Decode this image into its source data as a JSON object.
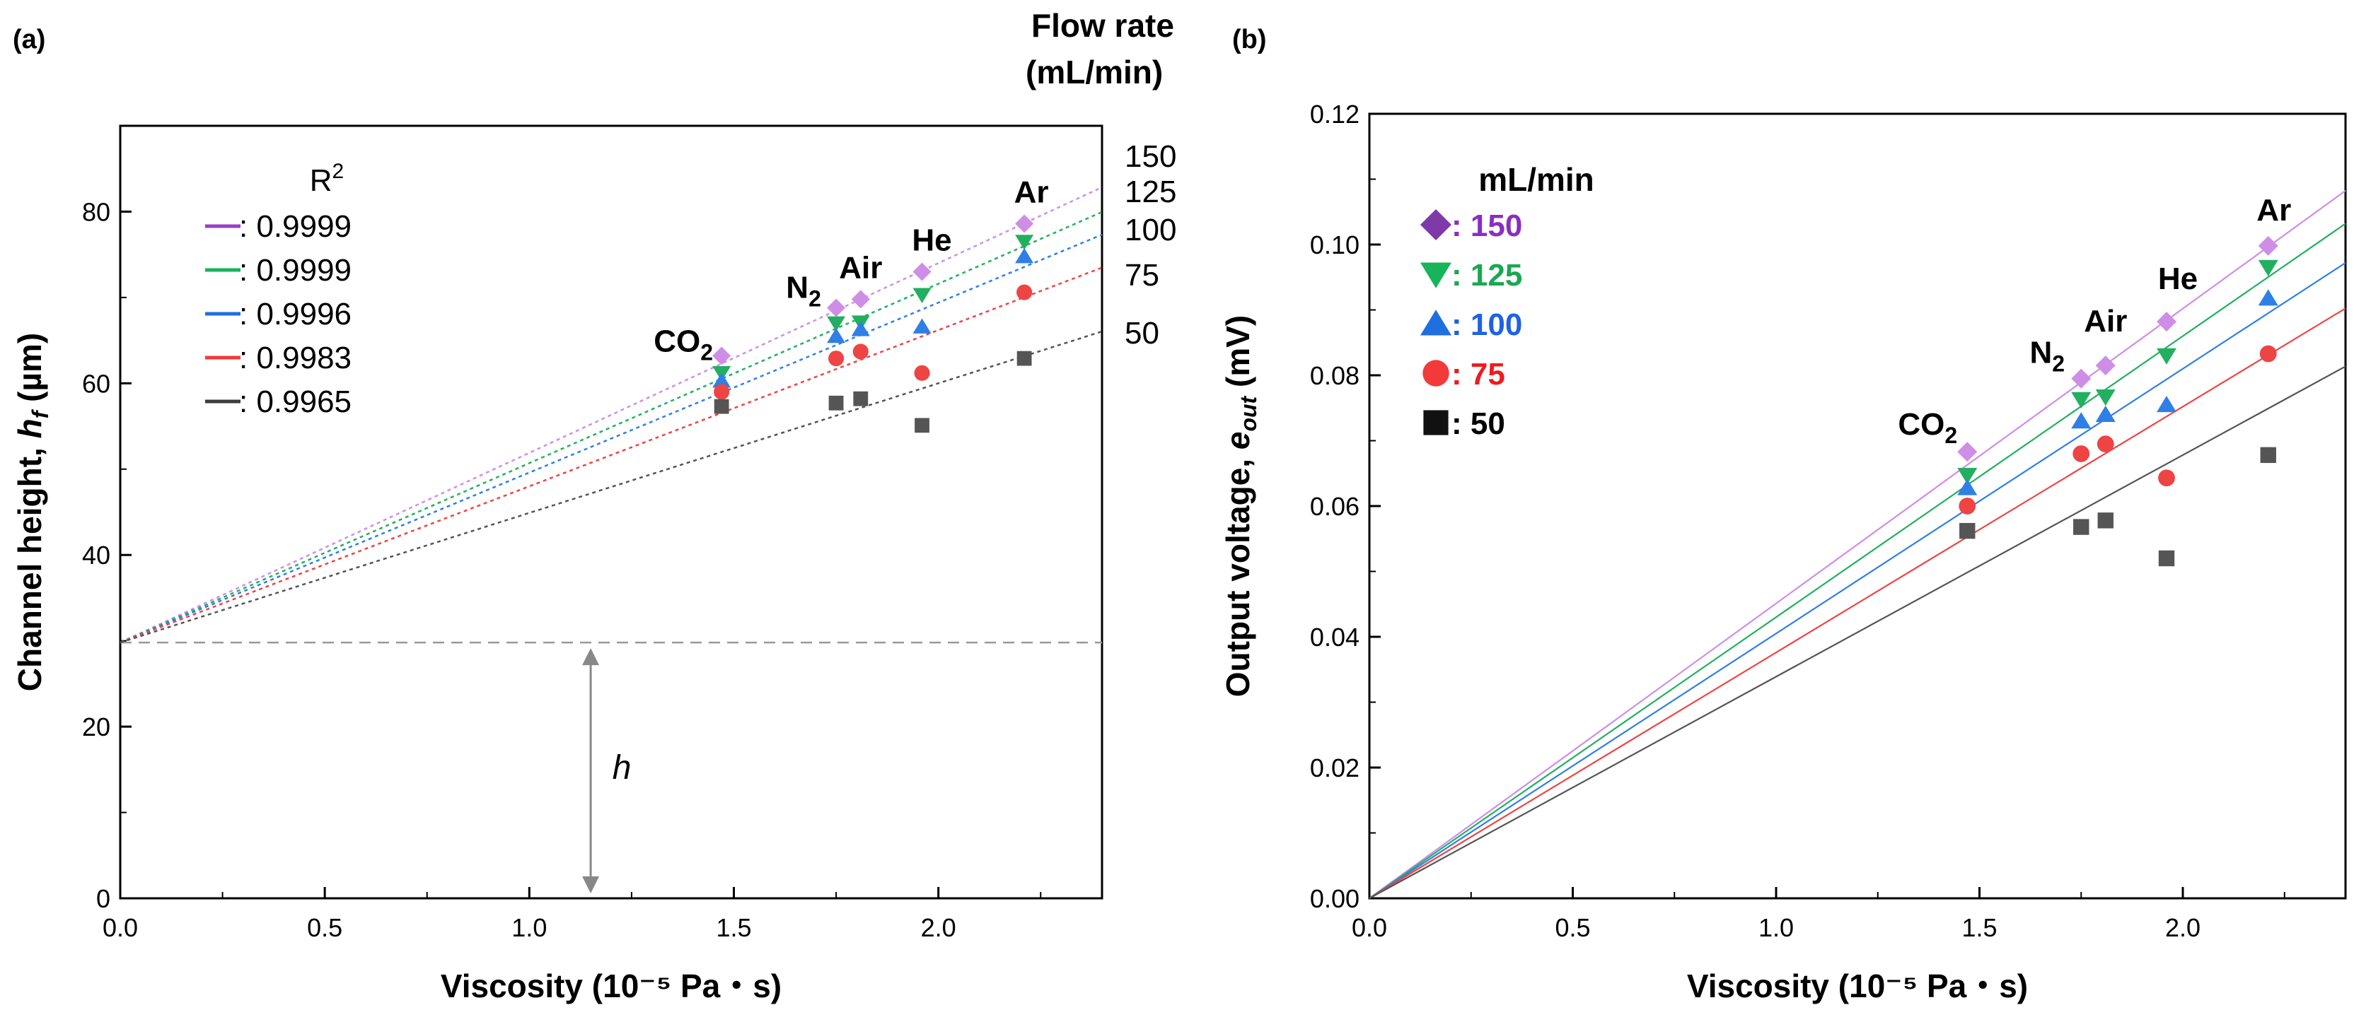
{
  "chart_data": [
    {
      "panel": "(a)",
      "type": "scatter",
      "xlabel": "Viscosity (10⁻⁵ Pa・s)",
      "ylabel_main": "Channel height, ",
      "ylabel_sym": "h",
      "ylabel_sub": "f",
      "ylabel_unit": " (µm)",
      "xlim": [
        0,
        2.4
      ],
      "ylim": [
        0,
        90
      ],
      "xticks": [
        "0.0",
        "0.5",
        "1.0",
        "1.5",
        "2.0"
      ],
      "yticks": [
        "0",
        "20",
        "40",
        "60",
        "80"
      ],
      "x": [
        1.47,
        1.75,
        1.81,
        1.96,
        2.21
      ],
      "gas_labels": [
        "CO",
        "N",
        "Air",
        "He",
        "Ar"
      ],
      "gas_label_subs": [
        "2",
        "2",
        "",
        "",
        ""
      ],
      "legend_title": "R",
      "legend_title_sup": "2",
      "flow_rate_header": [
        "Flow rate",
        "(mL/min)"
      ],
      "intercept_h": 29.8,
      "h_label": "h",
      "series": [
        {
          "name": "150",
          "r2": ": 0.9999",
          "values": [
            63.2,
            68.8,
            69.8,
            73.0,
            78.6
          ],
          "fit_slope": 22.1
        },
        {
          "name": "125",
          "r2": ": 0.9999",
          "values": [
            61.2,
            67.0,
            67.1,
            70.3,
            76.5
          ],
          "fit_slope": 20.9
        },
        {
          "name": "100",
          "r2": ": 0.9996",
          "values": [
            60.3,
            65.5,
            66.3,
            66.6,
            74.8
          ],
          "fit_slope": 19.8
        },
        {
          "name": "75",
          "r2": ": 0.9983",
          "values": [
            59.0,
            62.9,
            63.7,
            61.2,
            70.6
          ],
          "fit_slope": 18.2
        },
        {
          "name": "50",
          "r2": ": 0.9965",
          "values": [
            57.3,
            57.7,
            58.2,
            55.1,
            62.9
          ],
          "fit_slope": 15.1
        }
      ]
    },
    {
      "panel": "(b)",
      "type": "scatter",
      "xlabel": "Viscosity (10⁻⁵ Pa・s)",
      "ylabel_main": "Output voltage, ",
      "ylabel_sym": "e",
      "ylabel_sub": "out",
      "ylabel_unit": " (mV)",
      "xlim": [
        0,
        2.4
      ],
      "ylim": [
        0,
        0.12
      ],
      "xticks": [
        "0.0",
        "0.5",
        "1.0",
        "1.5",
        "2.0"
      ],
      "yticks": [
        "0.00",
        "0.02",
        "0.04",
        "0.06",
        "0.08",
        "0.10",
        "0.12"
      ],
      "x": [
        1.47,
        1.75,
        1.81,
        1.96,
        2.21
      ],
      "gas_labels": [
        "CO",
        "N",
        "Air",
        "He",
        "Ar"
      ],
      "gas_label_subs": [
        "2",
        "2",
        "",
        "",
        ""
      ],
      "legend_title": "mL/min",
      "series": [
        {
          "name": "150",
          "label": ": 150",
          "values": [
            0.0683,
            0.0795,
            0.0815,
            0.0882,
            0.0998
          ],
          "fit_slope": 0.0451
        },
        {
          "name": "125",
          "label": ": 125",
          "values": [
            0.0647,
            0.0763,
            0.0767,
            0.083,
            0.0965
          ],
          "fit_slope": 0.043
        },
        {
          "name": "100",
          "label": ": 100",
          "values": [
            0.0628,
            0.073,
            0.074,
            0.0755,
            0.0918
          ],
          "fit_slope": 0.0405
        },
        {
          "name": "75",
          "label": ": 75",
          "values": [
            0.06,
            0.068,
            0.0695,
            0.0643,
            0.0833
          ],
          "fit_slope": 0.0376
        },
        {
          "name": "50",
          "label": ": 50",
          "values": [
            0.0562,
            0.0568,
            0.0578,
            0.052,
            0.0678
          ],
          "fit_slope": 0.0339
        }
      ]
    }
  ],
  "colors": {
    "150": "#9b3fc6",
    "125": "#17b45a",
    "100": "#1f6fe0",
    "75": "#f23a3a",
    "50": "#3c3c3c",
    "150_light": "#cf8ee6",
    "125_light": "#22b060",
    "100_light": "#2f7fe6",
    "75_light": "#ee4444",
    "50_light": "#555555",
    "150_text": "#8a2ec0",
    "125_text": "#1aa752",
    "100_text": "#1e62e6",
    "75_text": "#ee1c1c",
    "50_text": "#000000",
    "150_mark_b": "#7e3aa8",
    "dash": "#999999"
  }
}
